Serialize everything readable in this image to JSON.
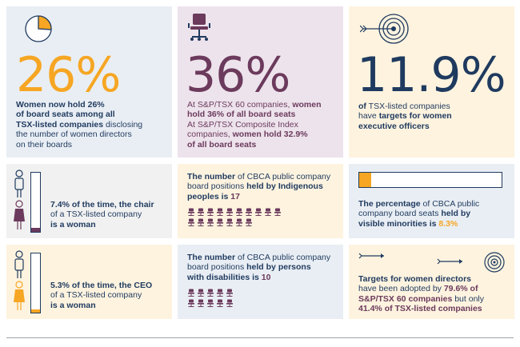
{
  "colors": {
    "orange": "#f6a623",
    "navy": "#1f3a5f",
    "plum": "#6b3a5c",
    "blue_panel": "#e9eef4",
    "lavender_panel": "#ede3ec",
    "cream_panel": "#fdf3df",
    "grey_panel": "#f1f1f1"
  },
  "stat1": {
    "value": "26%",
    "part1": "Women now hold 26%",
    "part2": "of board seats among all",
    "part3": "TSX-listed companies",
    "part4": " disclosing",
    "part5": "the number of women directors",
    "part6": "on their boards",
    "icon": "pie-chart-icon",
    "fraction": 0.26
  },
  "stat2": {
    "value": "36%",
    "l1a": "At S&P/TSX 60 companies, ",
    "l1b": "women",
    "l2": "hold 36% of all board seats",
    "l3": "At S&P/TSX Composite Index",
    "l4a": "companies, ",
    "l4b": "women hold 32.9%",
    "l5": "of all board seats",
    "icon": "office-chair-icon"
  },
  "stat3": {
    "value": "11.9%",
    "l1a": "of",
    "l1b": " TSX-listed companies",
    "l2a": "have ",
    "l2b": "targets for women",
    "l3": "executive officers",
    "icon": "target-arrow-icon"
  },
  "chair": {
    "l1": "7.4% of the time, the chair",
    "l2": "of a TSX-listed company",
    "l3": "is a woman",
    "fraction": 0.074,
    "icon": "man-woman-icon"
  },
  "indigenous": {
    "l1a": "The number",
    "l1b": " of CBCA public company",
    "l2a": "board positions ",
    "l2b": "held by Indigenous",
    "l3a": "peoples is ",
    "l3b": "17",
    "count": 17,
    "icon": "chair-icon"
  },
  "minorities": {
    "l1a": "The percentage",
    "l1b": " of CBCA public",
    "l2a": "company board seats ",
    "l2b": "held by",
    "l3a": "visible minorities is ",
    "l3b": "8.3%",
    "fraction": 0.083
  },
  "ceo": {
    "l1": "5.3% of the time, the CEO",
    "l2": "of a TSX-listed company",
    "l3": "is a woman",
    "fraction": 0.053,
    "icon": "man-woman-icon"
  },
  "disabilities": {
    "l1a": "The number",
    "l1b": " of CBCA public company",
    "l2a": "board positions ",
    "l2b": "held by persons",
    "l3a": "with disabilities is ",
    "l3b": "10",
    "count": 10,
    "icon": "chair-icon"
  },
  "targets": {
    "l1": "Targets for women directors",
    "l2a": "have been adopted by ",
    "l2b": "79.6% of",
    "l3a": "S&P/TSX 60 companies",
    "l3b": " but only",
    "l4": "41.4% of TSX-listed companies",
    "icon": "target-arrow-icon"
  }
}
